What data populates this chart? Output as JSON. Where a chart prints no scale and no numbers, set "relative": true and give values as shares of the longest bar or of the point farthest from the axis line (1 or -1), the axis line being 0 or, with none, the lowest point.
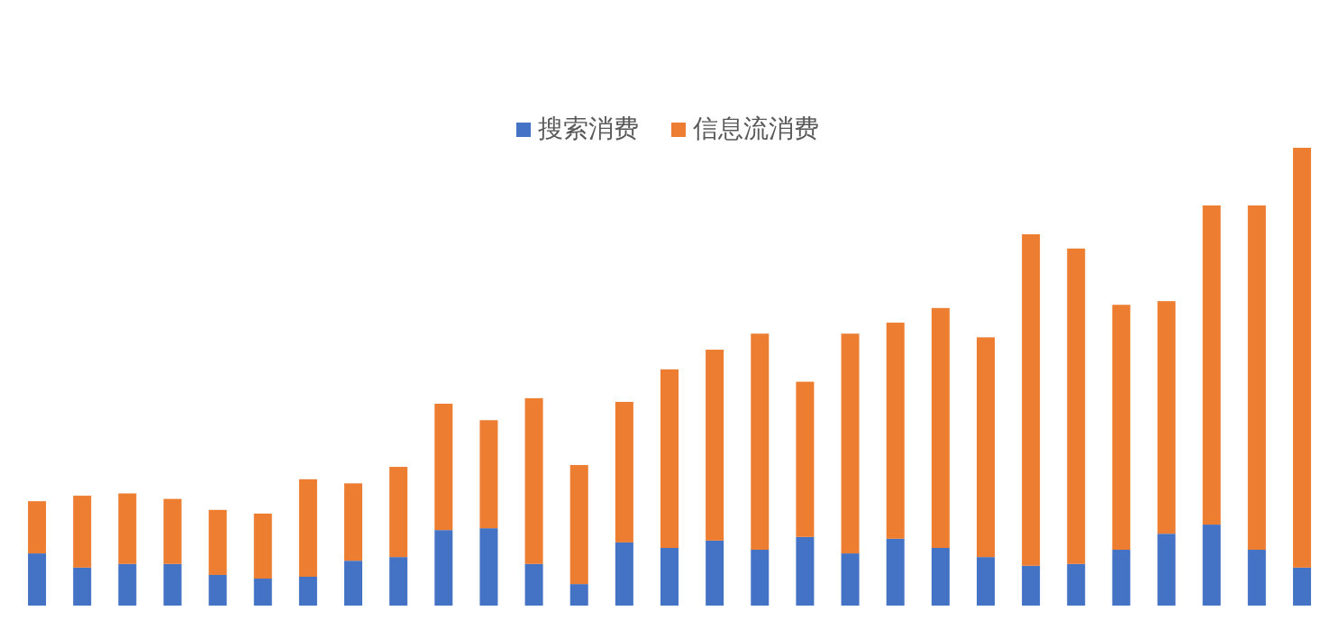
{
  "chart_data": {
    "type": "bar",
    "stacked": true,
    "relative": true,
    "legend": "top",
    "categories": [
      null,
      null,
      null,
      null,
      null,
      null,
      null,
      null,
      null,
      null,
      null,
      null,
      null,
      null,
      null,
      null,
      null,
      null,
      null,
      null,
      null,
      null,
      null,
      null,
      null,
      null,
      null,
      null,
      null
    ],
    "series": [
      {
        "name": "搜索消费",
        "color": "#4472c4",
        "values": [
          0.114,
          0.083,
          0.091,
          0.091,
          0.067,
          0.059,
          0.063,
          0.098,
          0.106,
          0.165,
          0.169,
          0.091,
          0.047,
          0.138,
          0.126,
          0.142,
          0.122,
          0.15,
          0.114,
          0.146,
          0.126,
          0.106,
          0.087,
          0.091,
          0.122,
          0.157,
          0.177,
          0.122,
          0.083
        ]
      },
      {
        "name": "信息流消费",
        "color": "#ed7d31",
        "values": [
          0.114,
          0.157,
          0.154,
          0.142,
          0.142,
          0.142,
          0.213,
          0.169,
          0.197,
          0.276,
          0.236,
          0.362,
          0.26,
          0.307,
          0.39,
          0.417,
          0.472,
          0.339,
          0.48,
          0.472,
          0.524,
          0.48,
          0.724,
          0.689,
          0.535,
          0.508,
          0.697,
          0.752,
          0.917
        ]
      }
    ]
  }
}
